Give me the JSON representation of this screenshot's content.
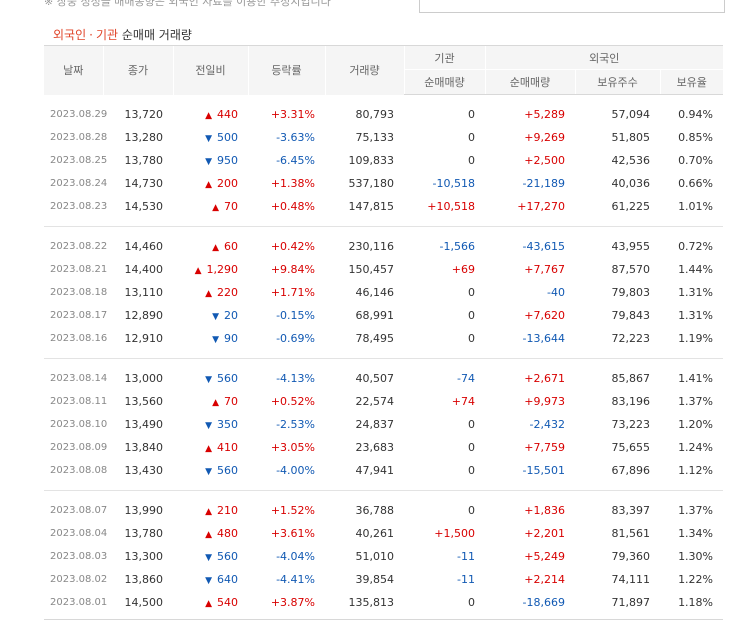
{
  "top_note": "※ 장중 정정을 매매동향은 외국인 자료를 이용한 추정치입니다",
  "heading": {
    "foreign": "외국인",
    "sep": "·",
    "institution": "기관",
    "rest": "순매매 거래량"
  },
  "columns": {
    "date": "날짜",
    "close": "종가",
    "change": "전일비",
    "rate": "등락률",
    "volume": "거래량",
    "inst_group": "기관",
    "inst_net": "순매매량",
    "foreign_group": "외국인",
    "foreign_net": "순매매량",
    "foreign_hold": "보유주수",
    "foreign_ratio": "보유율"
  },
  "rows": [
    {
      "date": "2023.08.29",
      "close": "13,720",
      "dir": "up",
      "change": "440",
      "rate": "+3.31%",
      "volume": "80,793",
      "inst": "0",
      "foreign": "+5,289",
      "hold": "57,094",
      "ratio": "0.94%"
    },
    {
      "date": "2023.08.28",
      "close": "13,280",
      "dir": "down",
      "change": "500",
      "rate": "-3.63%",
      "volume": "75,133",
      "inst": "0",
      "foreign": "+9,269",
      "hold": "51,805",
      "ratio": "0.85%"
    },
    {
      "date": "2023.08.25",
      "close": "13,780",
      "dir": "down",
      "change": "950",
      "rate": "-6.45%",
      "volume": "109,833",
      "inst": "0",
      "foreign": "+2,500",
      "hold": "42,536",
      "ratio": "0.70%"
    },
    {
      "date": "2023.08.24",
      "close": "14,730",
      "dir": "up",
      "change": "200",
      "rate": "+1.38%",
      "volume": "537,180",
      "inst": "-10,518",
      "foreign": "-21,189",
      "hold": "40,036",
      "ratio": "0.66%"
    },
    {
      "date": "2023.08.23",
      "close": "14,530",
      "dir": "up",
      "change": "70",
      "rate": "+0.48%",
      "volume": "147,815",
      "inst": "+10,518",
      "foreign": "+17,270",
      "hold": "61,225",
      "ratio": "1.01%"
    },
    {
      "date": "2023.08.22",
      "close": "14,460",
      "dir": "up",
      "change": "60",
      "rate": "+0.42%",
      "volume": "230,116",
      "inst": "-1,566",
      "foreign": "-43,615",
      "hold": "43,955",
      "ratio": "0.72%"
    },
    {
      "date": "2023.08.21",
      "close": "14,400",
      "dir": "up",
      "change": "1,290",
      "rate": "+9.84%",
      "volume": "150,457",
      "inst": "+69",
      "foreign": "+7,767",
      "hold": "87,570",
      "ratio": "1.44%"
    },
    {
      "date": "2023.08.18",
      "close": "13,110",
      "dir": "up",
      "change": "220",
      "rate": "+1.71%",
      "volume": "46,146",
      "inst": "0",
      "foreign": "-40",
      "hold": "79,803",
      "ratio": "1.31%"
    },
    {
      "date": "2023.08.17",
      "close": "12,890",
      "dir": "down",
      "change": "20",
      "rate": "-0.15%",
      "volume": "68,991",
      "inst": "0",
      "foreign": "+7,620",
      "hold": "79,843",
      "ratio": "1.31%"
    },
    {
      "date": "2023.08.16",
      "close": "12,910",
      "dir": "down",
      "change": "90",
      "rate": "-0.69%",
      "volume": "78,495",
      "inst": "0",
      "foreign": "-13,644",
      "hold": "72,223",
      "ratio": "1.19%"
    },
    {
      "date": "2023.08.14",
      "close": "13,000",
      "dir": "down",
      "change": "560",
      "rate": "-4.13%",
      "volume": "40,507",
      "inst": "-74",
      "foreign": "+2,671",
      "hold": "85,867",
      "ratio": "1.41%"
    },
    {
      "date": "2023.08.11",
      "close": "13,560",
      "dir": "up",
      "change": "70",
      "rate": "+0.52%",
      "volume": "22,574",
      "inst": "+74",
      "foreign": "+9,973",
      "hold": "83,196",
      "ratio": "1.37%"
    },
    {
      "date": "2023.08.10",
      "close": "13,490",
      "dir": "down",
      "change": "350",
      "rate": "-2.53%",
      "volume": "24,837",
      "inst": "0",
      "foreign": "-2,432",
      "hold": "73,223",
      "ratio": "1.20%"
    },
    {
      "date": "2023.08.09",
      "close": "13,840",
      "dir": "up",
      "change": "410",
      "rate": "+3.05%",
      "volume": "23,683",
      "inst": "0",
      "foreign": "+7,759",
      "hold": "75,655",
      "ratio": "1.24%"
    },
    {
      "date": "2023.08.08",
      "close": "13,430",
      "dir": "down",
      "change": "560",
      "rate": "-4.00%",
      "volume": "47,941",
      "inst": "0",
      "foreign": "-15,501",
      "hold": "67,896",
      "ratio": "1.12%"
    },
    {
      "date": "2023.08.07",
      "close": "13,990",
      "dir": "up",
      "change": "210",
      "rate": "+1.52%",
      "volume": "36,788",
      "inst": "0",
      "foreign": "+1,836",
      "hold": "83,397",
      "ratio": "1.37%"
    },
    {
      "date": "2023.08.04",
      "close": "13,780",
      "dir": "up",
      "change": "480",
      "rate": "+3.61%",
      "volume": "40,261",
      "inst": "+1,500",
      "foreign": "+2,201",
      "hold": "81,561",
      "ratio": "1.34%"
    },
    {
      "date": "2023.08.03",
      "close": "13,300",
      "dir": "down",
      "change": "560",
      "rate": "-4.04%",
      "volume": "51,010",
      "inst": "-11",
      "foreign": "+5,249",
      "hold": "79,360",
      "ratio": "1.30%"
    },
    {
      "date": "2023.08.02",
      "close": "13,860",
      "dir": "down",
      "change": "640",
      "rate": "-4.41%",
      "volume": "39,854",
      "inst": "-11",
      "foreign": "+2,214",
      "hold": "74,111",
      "ratio": "1.22%"
    },
    {
      "date": "2023.08.01",
      "close": "14,500",
      "dir": "up",
      "change": "540",
      "rate": "+3.87%",
      "volume": "135,813",
      "inst": "0",
      "foreign": "-18,669",
      "hold": "71,897",
      "ratio": "1.18%"
    }
  ],
  "colors": {
    "up": "#d80000",
    "down": "#1159b3",
    "accent": "#e0452a"
  },
  "icons": {
    "up": "triangle-up-icon",
    "down": "triangle-down-icon"
  }
}
